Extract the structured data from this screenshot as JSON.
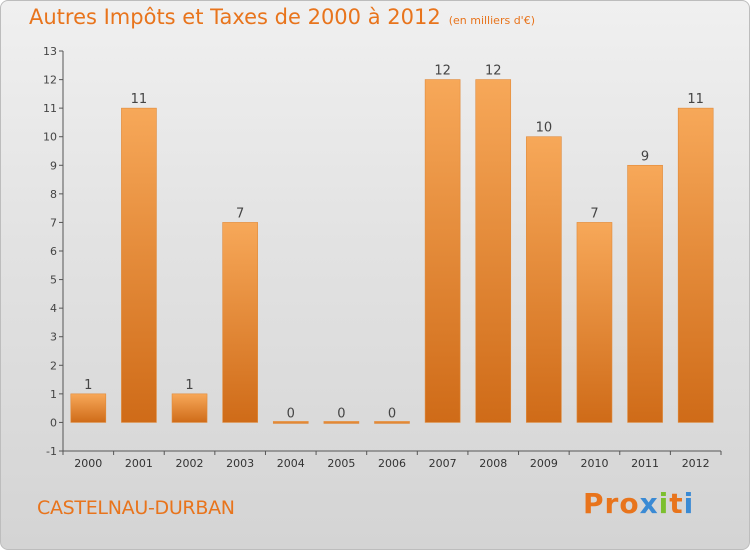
{
  "header": {
    "title": "Autres Impôts et Taxes de 2000 à 2012",
    "unit": "(en milliers d'€)"
  },
  "footer": {
    "commune": "CASTELNAU-DURBAN",
    "brand": "Proxiti"
  },
  "colors": {
    "accent": "#e8741c",
    "bar_top": "#f7a859",
    "bar_bottom": "#cf6b18",
    "brand_letters": [
      "#e8741c",
      "#e8741c",
      "#e8741c",
      "#3a8ad4",
      "#7cbf2e",
      "#e8741c",
      "#3a8ad4"
    ]
  },
  "chart_data": {
    "type": "bar",
    "title": "Autres Impôts et Taxes de 2000 à 2012",
    "subtitle": "(en milliers d'€)",
    "categories": [
      "2000",
      "2001",
      "2002",
      "2003",
      "2004",
      "2005",
      "2006",
      "2007",
      "2008",
      "2009",
      "2010",
      "2011",
      "2012"
    ],
    "values": [
      1,
      11,
      1,
      7,
      0,
      0,
      0,
      12,
      12,
      10,
      7,
      9,
      11
    ],
    "ylim": [
      -1,
      13
    ],
    "yticks": [
      -1,
      0,
      1,
      2,
      3,
      4,
      5,
      6,
      7,
      8,
      9,
      10,
      11,
      12,
      13
    ],
    "xlabel": "",
    "ylabel": "",
    "grid": false,
    "legend": "none"
  }
}
